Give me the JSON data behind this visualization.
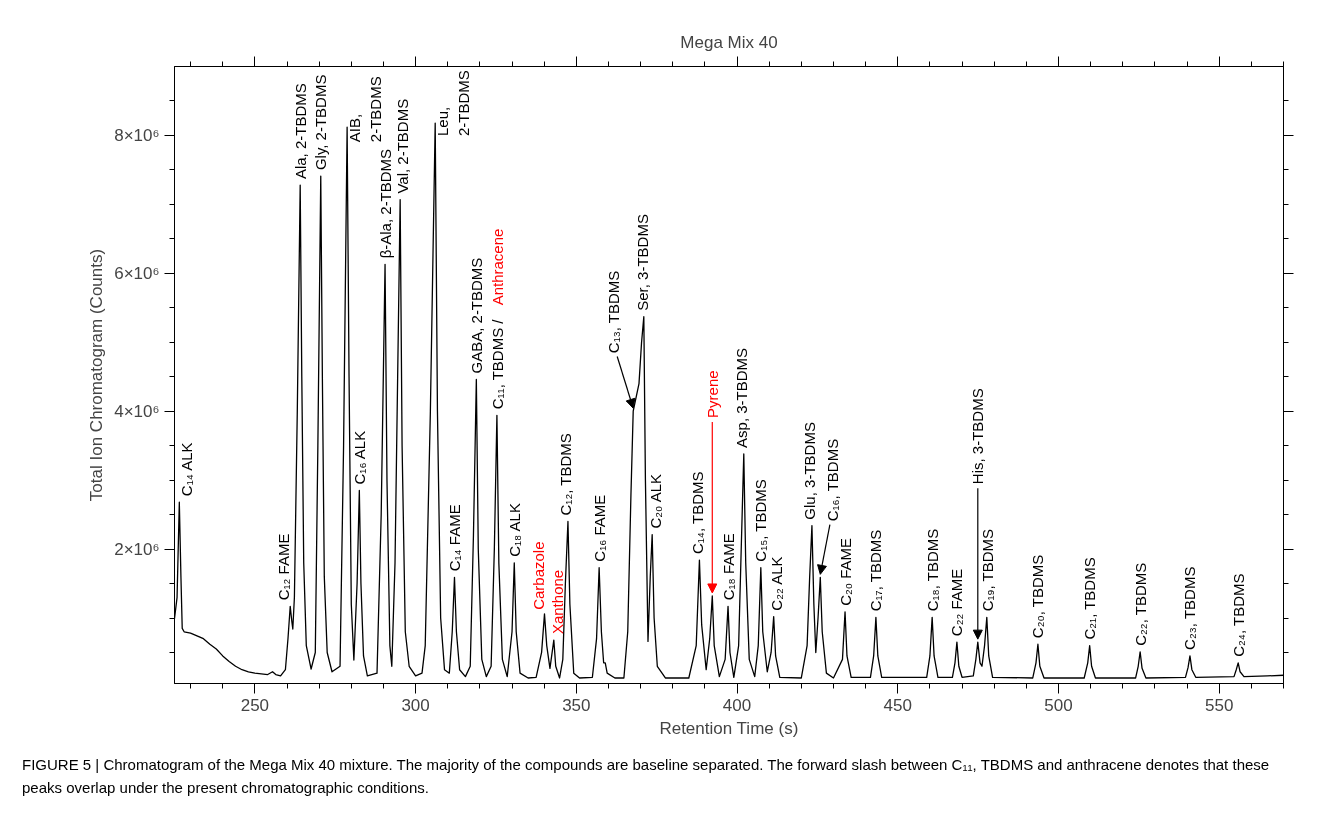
{
  "chart_data": {
    "type": "line",
    "title": "Mega Mix 40",
    "xlabel": "Retention Time (s)",
    "ylabel": "Total Ion Chromatogram (Counts)",
    "xlim": [
      225,
      570
    ],
    "ylim": [
      50000.0,
      9000000.0
    ],
    "xticks": [
      {
        "value": 230,
        "label": null
      },
      {
        "value": 240,
        "label": null
      },
      250,
      {
        "value": 260,
        "label": null
      },
      {
        "value": 270,
        "label": null
      },
      {
        "value": 280,
        "label": null
      },
      {
        "value": 290,
        "label": null
      },
      300,
      {
        "value": 310,
        "label": null
      },
      {
        "value": 320,
        "label": null
      },
      {
        "value": 330,
        "label": null
      },
      {
        "value": 340,
        "label": null
      },
      350,
      {
        "value": 360,
        "label": null
      },
      {
        "value": 370,
        "label": null
      },
      {
        "value": 380,
        "label": null
      },
      {
        "value": 390,
        "label": null
      },
      400,
      {
        "value": 410,
        "label": null
      },
      {
        "value": 420,
        "label": null
      },
      {
        "value": 430,
        "label": null
      },
      {
        "value": 440,
        "label": null
      },
      450,
      {
        "value": 460,
        "label": null
      },
      {
        "value": 470,
        "label": null
      },
      {
        "value": 480,
        "label": null
      },
      {
        "value": 490,
        "label": null
      },
      500,
      {
        "value": 510,
        "label": null
      },
      {
        "value": 520,
        "label": null
      },
      {
        "value": 530,
        "label": null
      },
      {
        "value": 540,
        "label": null
      },
      550,
      {
        "value": 560,
        "label": null
      },
      {
        "value": 570,
        "label": null
      }
    ],
    "yticks": [
      {
        "value": 500000.0,
        "label": null
      },
      {
        "value": 1000000.0,
        "label": null
      },
      {
        "value": 1500000.0,
        "label": null
      },
      {
        "value": 2000000.0,
        "label": "2×10⁶"
      },
      {
        "value": 2500000.0,
        "label": null
      },
      {
        "value": 3000000.0,
        "label": null
      },
      {
        "value": 3500000.0,
        "label": null
      },
      {
        "value": 4000000.0,
        "label": "4×10⁶"
      },
      {
        "value": 4500000.0,
        "label": null
      },
      {
        "value": 5000000.0,
        "label": null
      },
      {
        "value": 5500000.0,
        "label": null
      },
      {
        "value": 6000000.0,
        "label": "6×10⁶"
      },
      {
        "value": 6500000.0,
        "label": null
      },
      {
        "value": 7000000.0,
        "label": null
      },
      {
        "value": 7500000.0,
        "label": null
      },
      {
        "value": 8000000.0,
        "label": "8×10⁶"
      },
      {
        "value": 8500000.0,
        "label": null
      }
    ],
    "series": [
      {
        "color": "#000000",
        "x": [
          225.0,
          225.8,
          226.5,
          227.0,
          227.4,
          228,
          230,
          232,
          234,
          236,
          238,
          240,
          242,
          244,
          246,
          248,
          250,
          252,
          254,
          255.5,
          256.5,
          258,
          259.5,
          260.3,
          261.0,
          261.5,
          261.8,
          262.3,
          263.2,
          264.1,
          264.6,
          265.2,
          266,
          267.5,
          268.8,
          269.6,
          270.5,
          271.0,
          271.6,
          272.5,
          274,
          276.5,
          277.6,
          278.7,
          279.3,
          280,
          280.8,
          281.8,
          282.5,
          283.0,
          283.8,
          285,
          288,
          289.3,
          290.5,
          291.1,
          292,
          292.6,
          293.6,
          295.2,
          295.8,
          296.8,
          298,
          300,
          302,
          303,
          304.6,
          306.1,
          306.8,
          307.8,
          309,
          310.5,
          311.4,
          312.1,
          312.7,
          313.7,
          315.5,
          317,
          318.0,
          318.9,
          319.5,
          320.6,
          322,
          323.5,
          324.5,
          325.3,
          325.9,
          327,
          328.5,
          330.0,
          330.7,
          331.3,
          332.5,
          335,
          337.5,
          339.2,
          340.1,
          340.8,
          341.8,
          343.0,
          343.6,
          344.8,
          345.8,
          346.6,
          347.4,
          348.0,
          349.2,
          351,
          355,
          356.3,
          357.1,
          357.8,
          358.5,
          359.0,
          359.6,
          362,
          364.8,
          366.0,
          367.0,
          367.7,
          369.5,
          370.3,
          371.0,
          371.5,
          372.3,
          373.0,
          373.6,
          374.2,
          375.2,
          377.7,
          385,
          387.3,
          388.3,
          389.0,
          390.4,
          391.5,
          392.3,
          392.9,
          394.5,
          396.3,
          397.2,
          397.8,
          399,
          400.5,
          401.3,
          402.1,
          402.7,
          403.8,
          405.5,
          406.6,
          407.4,
          408.0,
          409.4,
          410.6,
          411.4,
          412.0,
          413.3,
          420,
          421.8,
          422.6,
          423.3,
          423.9,
          424.5,
          425.2,
          425.9,
          426.5,
          427.8,
          430,
          432.8,
          433.6,
          434.2,
          435.5,
          441.5,
          442.5,
          443.2,
          443.8,
          445,
          459,
          460.0,
          460.7,
          461.3,
          462.5,
          467,
          467.8,
          468.4,
          469.0,
          470,
          473.5,
          474.3,
          474.9,
          475.6,
          476.2,
          477.0,
          477.7,
          478.3,
          479.5,
          492,
          493.0,
          493.6,
          494.2,
          495.5,
          508,
          509.1,
          509.7,
          510.3,
          511.5,
          524,
          524.8,
          525.4,
          526.0,
          527.2,
          539.5,
          540.3,
          540.9,
          541.5,
          542.7,
          554.6,
          555.3,
          555.9,
          556.5,
          557.7,
          565,
          570
        ],
        "values": [
          990000.0,
          1300000.0,
          2680000.0,
          1600000.0,
          850000.0,
          800000.0,
          780000.0,
          740000.0,
          700000.0,
          620000.0,
          550000.0,
          450000.0,
          370000.0,
          300000.0,
          250000.0,
          220000.0,
          200000.0,
          190000.0,
          180000.0,
          220000.0,
          180000.0,
          160000.0,
          250000.0,
          700000.0,
          1170000.0,
          950000.0,
          840000.0,
          1300000.0,
          4000000.0,
          7280000.0,
          4500000.0,
          1800000.0,
          600000.0,
          260000.0,
          500000.0,
          3500000.0,
          7410000.0,
          4500000.0,
          1600000.0,
          500000.0,
          220000.0,
          300000.0,
          3500000.0,
          8120000.0,
          4500000.0,
          1200000.0,
          390000.0,
          1500000.0,
          2850000.0,
          1500000.0,
          450000.0,
          160000.0,
          200000.0,
          2500000.0,
          6130000.0,
          3000000.0,
          600000.0,
          300000.0,
          1800000.0,
          7070000.0,
          3500000.0,
          800000.0,
          300000.0,
          160000.0,
          200000.0,
          600000.0,
          4000000.0,
          8180000.0,
          4000000.0,
          1000000.0,
          250000.0,
          200000.0,
          800000.0,
          1590000.0,
          800000.0,
          250000.0,
          150000.0,
          300000.0,
          2200000.0,
          4460000.0,
          2000000.0,
          400000.0,
          150000.0,
          300000.0,
          2000000.0,
          3940000.0,
          1800000.0,
          400000.0,
          150000.0,
          800000.0,
          1800000.0,
          800000.0,
          200000.0,
          130000.0,
          140000.0,
          500000.0,
          1060000.0,
          600000.0,
          270000.0,
          680000.0,
          300000.0,
          130000.0,
          400000.0,
          1500000.0,
          2400000.0,
          1200000.0,
          200000.0,
          130000.0,
          140000.0,
          700000.0,
          1730000.0,
          800000.0,
          350000.0,
          350000.0,
          200000.0,
          130000.0,
          130000.0,
          800000.0,
          2800000.0,
          4000000.0,
          4400000.0,
          5000000.0,
          5370000.0,
          3000000.0,
          660000.0,
          1600000.0,
          2210000.0,
          1000000.0,
          300000.0,
          130000.0,
          130000.0,
          600000.0,
          1840000.0,
          900000.0,
          250000.0,
          700000.0,
          1320000.0,
          600000.0,
          150000.0,
          400000.0,
          1170000.0,
          500000.0,
          140000.0,
          600000.0,
          2000000.0,
          3380000.0,
          1800000.0,
          400000.0,
          150000.0,
          600000.0,
          1730000.0,
          800000.0,
          220000.0,
          500000.0,
          1020000.0,
          450000.0,
          140000.0,
          130000.0,
          600000.0,
          1600000.0,
          2340000.0,
          1200000.0,
          500000.0,
          1000000.0,
          1590000.0,
          800000.0,
          200000.0,
          130000.0,
          400000.0,
          1090000.0,
          450000.0,
          140000.0,
          140000.0,
          450000.0,
          1010000.0,
          450000.0,
          140000.0,
          140000.0,
          450000.0,
          1010000.0,
          450000.0,
          140000.0,
          140000.0,
          350000.0,
          650000.0,
          300000.0,
          140000.0,
          160000.0,
          400000.0,
          650000.0,
          350000.0,
          300000.0,
          600000.0,
          1010000.0,
          450000.0,
          140000.0,
          130000.0,
          350000.0,
          620000.0,
          300000.0,
          130000.0,
          130000.0,
          350000.0,
          600000.0,
          300000.0,
          130000.0,
          130000.0,
          300000.0,
          510000.0,
          270000.0,
          130000.0,
          140000.0,
          280000.0,
          450000.0,
          250000.0,
          140000.0,
          150000.0,
          250000.0,
          350000.0,
          220000.0,
          150000.0,
          160000.0,
          170000.0
        ]
      }
    ],
    "annotations": [
      {
        "text": "C₁₄ ALK",
        "x": 226.5,
        "y": 2680000.0
      },
      {
        "text": "C₁₂ FAME",
        "x": 261.0,
        "y": 1170000.0
      },
      {
        "text": "Ala, 2-TBDMS",
        "x": 264.1,
        "y": 7280000.0
      },
      {
        "text": "Gly, 2-TBDMS",
        "x": 270.5,
        "y": 7410000.0
      },
      {
        "text": "AIB,\n2-TBDMS",
        "x": 278.7,
        "y": 8120000.0
      },
      {
        "text": "C₁₆ ALK",
        "x": 282.5,
        "y": 2850000.0
      },
      {
        "text": "β-Ala, 2-TBDMS",
        "x": 290.5,
        "y": 6130000.0
      },
      {
        "text": "Val, 2-TBDMS",
        "x": 295.2,
        "y": 7070000.0
      },
      {
        "text": "Leu,\n2-TBDMS",
        "x": 306.1,
        "y": 8180000.0
      },
      {
        "text": "C₁₄ FAME",
        "x": 312.1,
        "y": 1590000.0
      },
      {
        "text": "GABA, 2-TBDMS",
        "x": 318.9,
        "y": 4460000.0
      },
      {
        "text": "C₁₁, TBDMS /",
        "x": 325.3,
        "y": 3940000.0
      },
      "Anthracene",
      {
        "text": "C₁₈ ALK",
        "x": 330.7,
        "y": 1800000.0
      },
      {
        "text": "Carbazole",
        "x": 340.1,
        "y": 1060000.0
      },
      {
        "text": "Xanthone",
        "x": 343.0,
        "y": 680000.0
      },
      {
        "text": "C₁₂, TBDMS",
        "x": 347.4,
        "y": 2400000.0
      },
      {
        "text": "C₁₆ FAME",
        "x": 357.1,
        "y": 1730000.0
      },
      {
        "text": "C₁₃, TBDMS",
        "x": 367.7,
        "y": 4000000.0
      },
      {
        "text": "Ser, 3-TBDMS",
        "x": 371.0,
        "y": 5370000.0
      },
      {
        "text": "C₂₀ ALK",
        "x": 373.6,
        "y": 2210000.0
      },
      {
        "text": "C₁₄, TBDMS",
        "x": 388.3,
        "y": 1840000.0
      },
      {
        "text": "Pyrene",
        "x": 392.3,
        "y": 1320000.0
      },
      {
        "text": "C₁₈ FAME",
        "x": 397.2,
        "y": 1170000.0
      },
      {
        "text": "Asp, 3-TBDMS",
        "x": 402.1,
        "y": 3380000.0
      },
      {
        "text": "C₁₅, TBDMS",
        "x": 407.4,
        "y": 1730000.0
      },
      {
        "text": "C₂₂ ALK",
        "x": 411.4,
        "y": 1020000.0
      },
      {
        "text": "Glu, 3-TBDMS",
        "x": 423.3,
        "y": 2340000.0
      },
      {
        "text": "C₁₆, TBDMS",
        "x": 425.9,
        "y": 1590000.0
      },
      {
        "text": "C₂₀ FAME",
        "x": 433.6,
        "y": 1090000.0
      },
      {
        "text": "C₁₇, TBDMS",
        "x": 443.2,
        "y": 1010000.0
      },
      {
        "text": "C₁₈, TBDMS",
        "x": 460.7,
        "y": 1010000.0
      },
      {
        "text": "C₂₂ FAME",
        "x": 468.4,
        "y": 650000.0
      },
      {
        "text": "His, 3-TBDMS",
        "x": 474.9,
        "y": 650000.0
      },
      {
        "text": "C₁₉, TBDMS",
        "x": 477.7,
        "y": 1010000.0
      },
      {
        "text": "C₂₀, TBDMS",
        "x": 493.6,
        "y": 620000.0
      },
      {
        "text": "C₂₁, TBDMS",
        "x": 509.7,
        "y": 600000.0
      },
      {
        "text": "C₂₂, TBDMS",
        "x": 525.4,
        "y": 510000.0
      },
      {
        "text": "C₂₃, TBDMS",
        "x": 540.9,
        "y": 450000.0
      },
      {
        "text": "C₂₄, TBDMS",
        "x": 555.9,
        "y": 350000.0
      },
      "FIGURE 5 | Chromatogram of the Mega Mix 40 mixture. The majority of the compounds are baseline separated. The forward slash between C₁₁, TBDMS and anthracene denotes that these peaks overlap under the present chromatographic conditions."
    ]
  }
}
